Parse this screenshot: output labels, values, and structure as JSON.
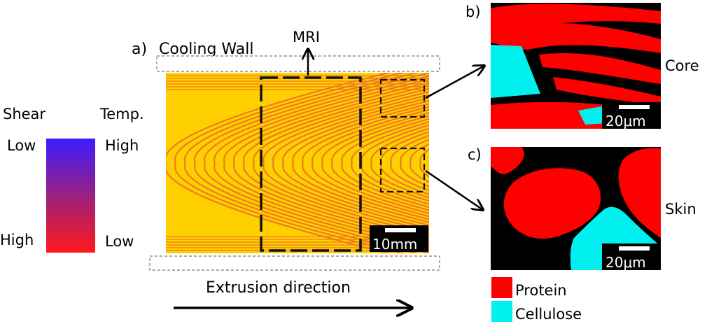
{
  "panel_a": {
    "label": "a)",
    "cooling_wall": "Cooling Wall",
    "mri": "MRI",
    "scale_bar": "10mm",
    "extrusion": "Extrusion direction"
  },
  "legend_shear": {
    "title": "Shear",
    "top": "Low",
    "bottom": "High"
  },
  "legend_temp": {
    "title": "Temp.",
    "top": "High",
    "bottom": "Low"
  },
  "panel_b": {
    "label": "b)",
    "region": "Core",
    "scale_bar": "20μm"
  },
  "panel_c": {
    "label": "c)",
    "region": "Skin",
    "scale_bar": "20μm"
  },
  "material_legend": {
    "protein": {
      "label": "Protein",
      "color": "#ff0000"
    },
    "cellulose": {
      "label": "Cellulose",
      "color": "#00f0f0"
    }
  },
  "colors": {
    "gradient_top": "#3b1cff",
    "gradient_bottom": "#ff1a1a",
    "sample_fill": "#ffd000",
    "stripe": "#f07a1e"
  }
}
